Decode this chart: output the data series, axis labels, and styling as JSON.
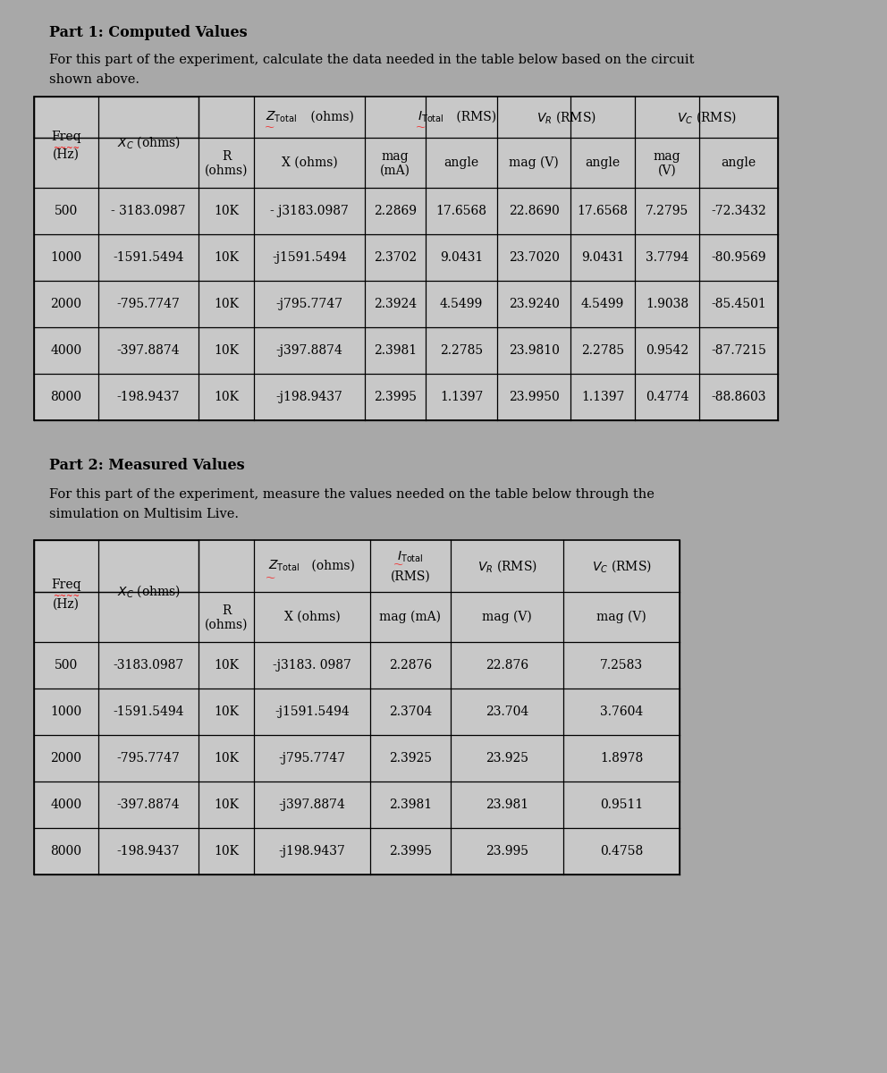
{
  "bg_color": "#a8a8a8",
  "cell_color": "#c8c8c8",
  "white": "#ffffff",
  "text_color": "#000000",
  "title1": "Part 1: Computed Values",
  "desc1_line1": "For this part of the experiment, calculate the data needed in the table below based on the circuit",
  "desc1_line2": "shown above.",
  "title2": "Part 2: Measured Values",
  "desc2_line1": "For this part of the experiment, measure the values needed on the table below through the",
  "desc2_line2": "simulation on Multisim Live.",
  "part1_rows": [
    [
      "500",
      "- 3183.0987",
      "10K",
      "- j3183.0987",
      "2.2869",
      "17.6568",
      "22.8690",
      "17.6568",
      "7.2795",
      "-72.3432"
    ],
    [
      "1000",
      "-1591.5494",
      "10K",
      "-j1591.5494",
      "2.3702",
      "9.0431",
      "23.7020",
      "9.0431",
      "3.7794",
      "-80.9569"
    ],
    [
      "2000",
      "-795.7747",
      "10K",
      "-j795.7747",
      "2.3924",
      "4.5499",
      "23.9240",
      "4.5499",
      "1.9038",
      "-85.4501"
    ],
    [
      "4000",
      "-397.8874",
      "10K",
      "-j397.8874",
      "2.3981",
      "2.2785",
      "23.9810",
      "2.2785",
      "0.9542",
      "-87.7215"
    ],
    [
      "8000",
      "-198.9437",
      "10K",
      "-j198.9437",
      "2.3995",
      "1.1397",
      "23.9950",
      "1.1397",
      "0.4774",
      "-88.8603"
    ]
  ],
  "part2_rows": [
    [
      "500",
      "-3183.0987",
      "10K",
      "-j3183. 0987",
      "2.2876",
      "22.876",
      "7.2583"
    ],
    [
      "1000",
      "-1591.5494",
      "10K",
      "-j1591.5494",
      "2.3704",
      "23.704",
      "3.7604"
    ],
    [
      "2000",
      "-795.7747",
      "10K",
      "-j795.7747",
      "2.3925",
      "23.925",
      "1.8978"
    ],
    [
      "4000",
      "-397.8874",
      "10K",
      "-j397.8874",
      "2.3981",
      "23.981",
      "0.9511"
    ],
    [
      "8000",
      "-198.9437",
      "10K",
      "-j198.9437",
      "2.3995",
      "23.995",
      "0.4758"
    ]
  ]
}
